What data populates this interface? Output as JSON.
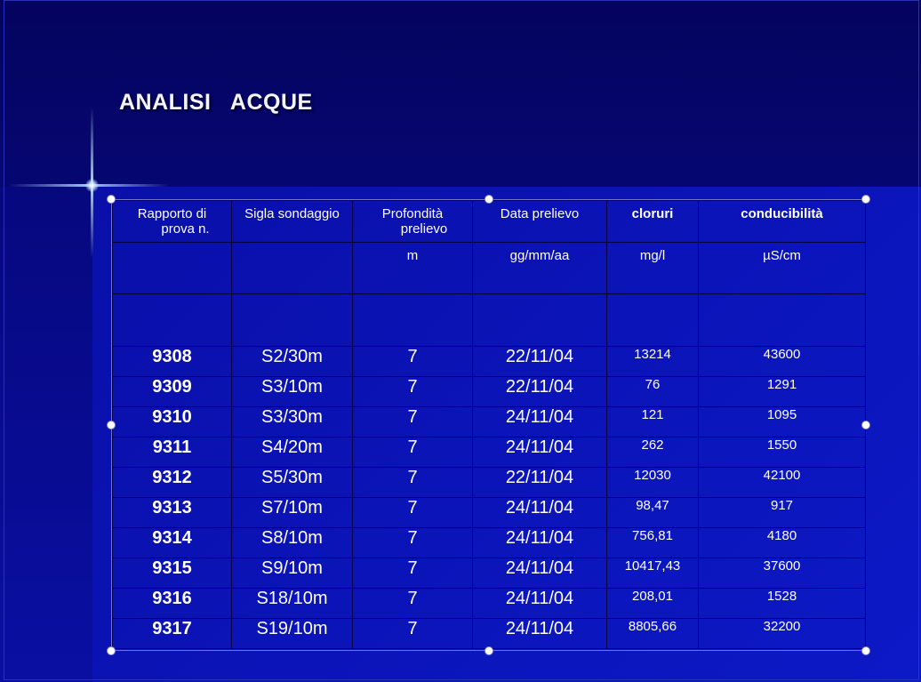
{
  "slide": {
    "title": "ANALISI   ACQUE"
  },
  "table": {
    "headers": [
      [
        "Rapporto di",
        "prova n."
      ],
      [
        "Sigla sondaggio"
      ],
      [
        "Profondità",
        "prelievo"
      ],
      [
        "Data prelievo"
      ],
      [
        "cloruri"
      ],
      [
        "conducibilità"
      ]
    ],
    "units": [
      "",
      "",
      "m",
      "gg/mm/aa",
      "mg/l",
      "µS/cm"
    ],
    "rows": [
      [
        "9308",
        "S2/30m",
        "7",
        "22/11/04",
        "13214",
        "43600"
      ],
      [
        "9309",
        "S3/10m",
        "7",
        "22/11/04",
        "76",
        "1291"
      ],
      [
        "9310",
        "S3/30m",
        "7",
        "24/11/04",
        "121",
        "1095"
      ],
      [
        "9311",
        "S4/20m",
        "7",
        "24/11/04",
        "262",
        "1550"
      ],
      [
        "9312",
        "S5/30m",
        "7",
        "22/11/04",
        "12030",
        "42100"
      ],
      [
        "9313",
        "S7/10m",
        "7",
        "24/11/04",
        "98,47",
        "917"
      ],
      [
        "9314",
        "S8/10m",
        "7",
        "24/11/04",
        "756,81",
        "4180"
      ],
      [
        "9315",
        "S9/10m",
        "7",
        "24/11/04",
        "10417,43",
        "37600"
      ],
      [
        "9316",
        "S18/10m",
        "7",
        "24/11/04",
        "208,01",
        "1528"
      ],
      [
        "9317",
        "S19/10m",
        "7",
        "24/11/04",
        "8805,66",
        "32200"
      ]
    ]
  },
  "colors": {
    "background": "#0a10a8",
    "title_text": "#f4f4ff",
    "table_text": "#ffffff"
  }
}
